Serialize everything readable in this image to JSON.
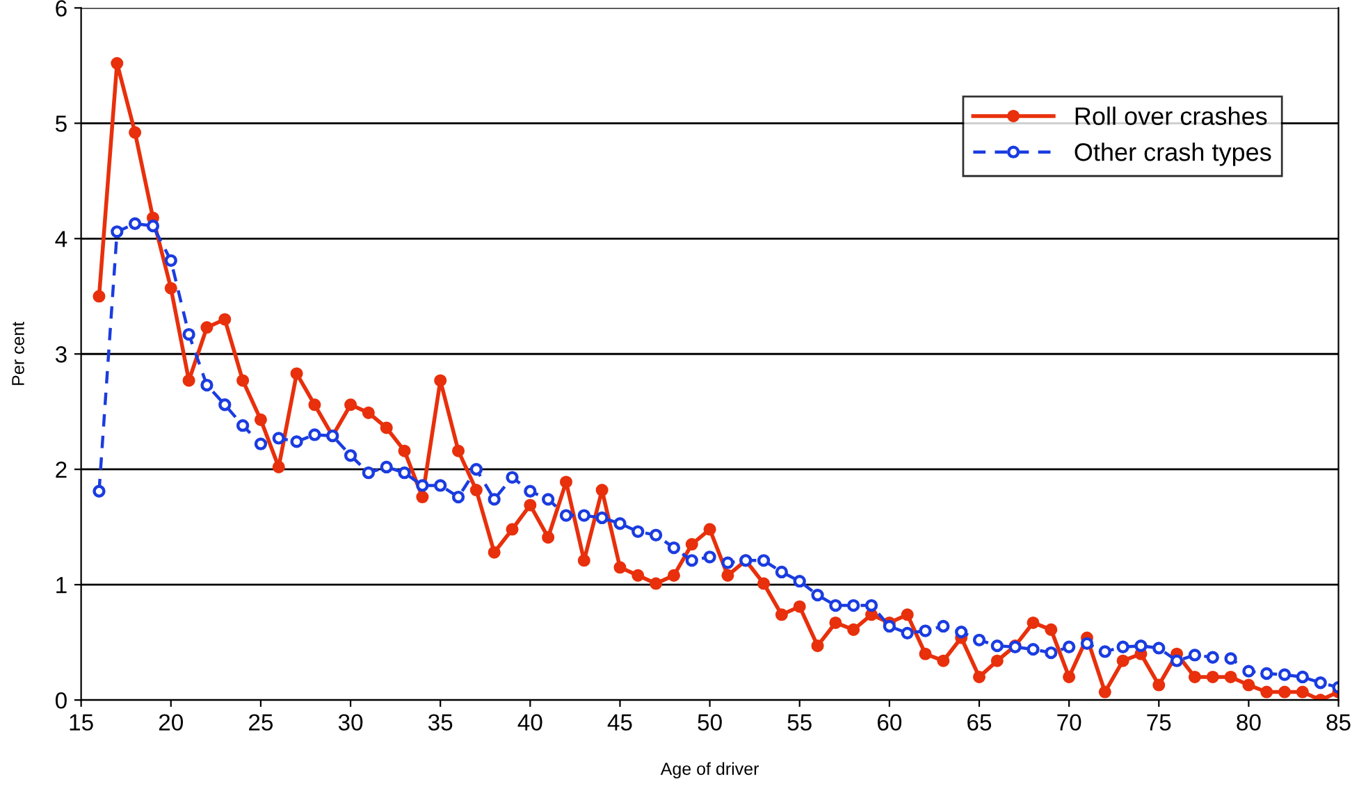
{
  "chart_data": {
    "type": "line",
    "xlabel": "Age of driver",
    "ylabel": "Per cent",
    "x": [
      16,
      17,
      18,
      19,
      20,
      21,
      22,
      23,
      24,
      25,
      26,
      27,
      28,
      29,
      30,
      31,
      32,
      33,
      34,
      35,
      36,
      37,
      38,
      39,
      40,
      41,
      42,
      43,
      44,
      45,
      46,
      47,
      48,
      49,
      50,
      51,
      52,
      53,
      54,
      55,
      56,
      57,
      58,
      59,
      60,
      61,
      62,
      63,
      64,
      65,
      66,
      67,
      68,
      69,
      70,
      71,
      72,
      73,
      74,
      75,
      76,
      77,
      78,
      79,
      80,
      81,
      82,
      83,
      84,
      85
    ],
    "series": [
      {
        "name": "Roll over crashes",
        "color": "#e8300c",
        "marker": "circle",
        "line_style": "solid",
        "values": [
          3.5,
          5.52,
          4.92,
          4.18,
          3.57,
          2.77,
          3.23,
          3.3,
          2.77,
          2.43,
          2.02,
          2.83,
          2.56,
          2.29,
          2.56,
          2.49,
          2.36,
          2.16,
          1.76,
          2.77,
          2.16,
          1.82,
          1.28,
          1.48,
          1.69,
          1.41,
          1.89,
          1.21,
          1.82,
          1.15,
          1.08,
          1.01,
          1.08,
          1.35,
          1.48,
          1.08,
          1.21,
          1.01,
          0.74,
          0.81,
          0.47,
          0.67,
          0.61,
          0.74,
          0.67,
          0.74,
          0.4,
          0.34,
          0.54,
          0.2,
          0.34,
          0.47,
          0.67,
          0.61,
          0.2,
          0.54,
          0.07,
          0.34,
          0.4,
          0.13,
          0.4,
          0.2,
          0.2,
          0.2,
          0.13,
          0.07,
          0.07,
          0.07,
          0.0,
          0.07
        ]
      },
      {
        "name": "Other crash types",
        "color": "#1a3ce0",
        "marker": "circle",
        "line_style": "dashed",
        "values": [
          1.81,
          4.06,
          4.13,
          4.11,
          3.81,
          3.17,
          2.73,
          2.56,
          2.38,
          2.22,
          2.27,
          2.24,
          2.3,
          2.29,
          2.12,
          1.97,
          2.02,
          1.97,
          1.86,
          1.86,
          1.76,
          2.0,
          1.74,
          1.93,
          1.81,
          1.74,
          1.6,
          1.6,
          1.58,
          1.53,
          1.46,
          1.43,
          1.32,
          1.21,
          1.24,
          1.19,
          1.21,
          1.21,
          1.11,
          1.03,
          0.91,
          0.82,
          0.82,
          0.82,
          0.64,
          0.58,
          0.6,
          0.64,
          0.59,
          0.52,
          0.47,
          0.46,
          0.44,
          0.41,
          0.46,
          0.49,
          0.42,
          0.46,
          0.47,
          0.45,
          0.34,
          0.39,
          0.37,
          0.36,
          0.25,
          0.23,
          0.22,
          0.2,
          0.15,
          0.11
        ]
      }
    ],
    "xlim": [
      15,
      85
    ],
    "xticks": [
      15,
      20,
      25,
      30,
      35,
      40,
      45,
      50,
      55,
      60,
      65,
      70,
      75,
      80,
      85
    ],
    "ylim": [
      0,
      6
    ],
    "yticks": [
      0,
      1,
      2,
      3,
      4,
      5,
      6
    ],
    "grid": "y",
    "legend": "top right"
  }
}
